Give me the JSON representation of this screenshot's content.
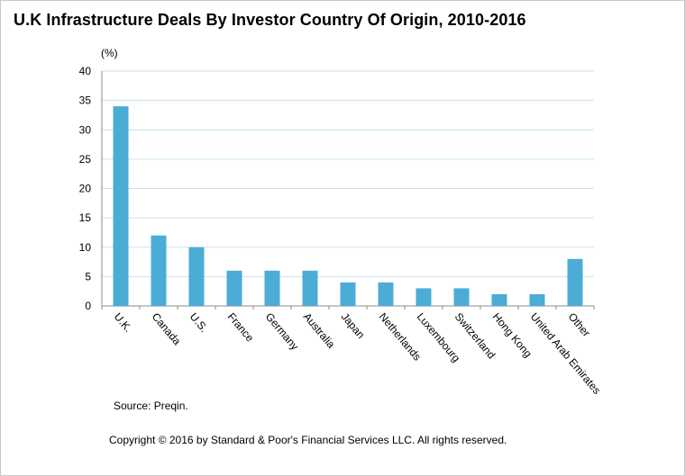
{
  "title": "U.K Infrastructure Deals By Investor Country Of Origin, 2010-2016",
  "source": "Source: Preqin.",
  "copyright": "Copyright © 2016 by Standard & Poor's Financial Services LLC. All rights reserved.",
  "colors": {
    "bar": "#4bacd6",
    "grid": "#c6e3f0",
    "axis": "#8c8c8c"
  },
  "chart_data": {
    "type": "bar",
    "title": "U.K Infrastructure Deals By Investor Country Of Origin, 2010-2016",
    "ylabel": "(%)",
    "xlabel": "",
    "categories": [
      "U.K.",
      "Canada",
      "U.S.",
      "France",
      "Germany",
      "Australia",
      "Japan",
      "Netherlands",
      "Luxembourg",
      "Switzerland",
      "Hong Kong",
      "United Arab Emirates",
      "Other"
    ],
    "values": [
      34,
      12,
      10,
      6,
      6,
      6,
      4,
      4,
      3,
      3,
      2,
      2,
      8
    ],
    "ylim": [
      0,
      40
    ],
    "yticks": [
      0,
      5,
      10,
      15,
      20,
      25,
      30,
      35,
      40
    ],
    "grid": true,
    "legend": "none"
  }
}
